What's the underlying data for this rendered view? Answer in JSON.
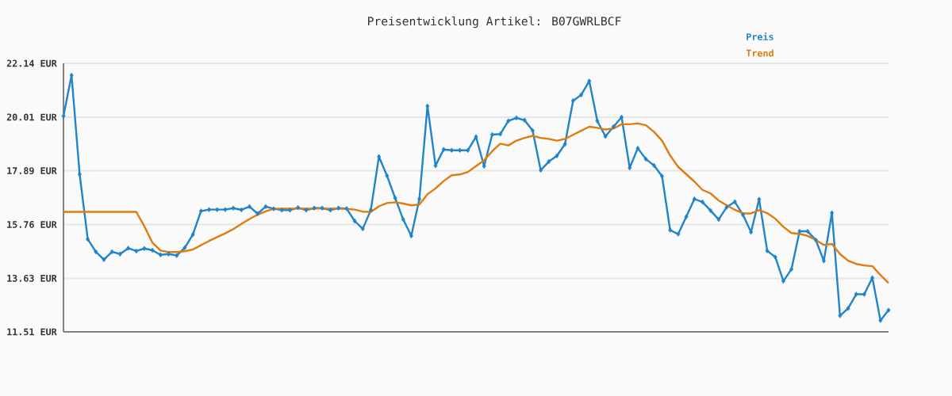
{
  "chart_data": {
    "type": "line",
    "title": "Preisentwicklung Artikel: B07GWRLBCF",
    "categories": [
      null,
      null,
      null,
      null,
      null,
      null,
      null,
      null,
      null,
      null,
      null,
      null,
      null,
      null,
      null,
      null,
      null,
      null,
      null,
      null,
      null,
      null,
      null,
      null,
      null,
      null,
      null,
      null,
      null,
      null,
      null,
      null,
      null,
      null,
      null,
      null,
      null,
      null,
      null,
      null,
      null,
      null,
      null,
      null,
      null,
      null,
      null,
      null,
      null,
      null,
      null,
      null,
      null,
      null,
      null,
      null,
      null,
      null,
      null,
      null,
      null,
      null,
      null,
      null,
      null,
      null,
      null,
      null,
      null,
      null,
      null,
      null,
      null,
      null,
      null,
      null,
      null,
      null,
      null,
      null,
      null,
      null,
      null,
      null,
      null,
      null,
      null,
      null,
      null,
      null,
      null,
      null,
      null,
      null,
      null,
      null,
      null,
      null,
      null,
      null,
      null,
      null,
      null
    ],
    "series": [
      {
        "name": "Preis",
        "color": "#1f84c9",
        "marker": "diamond",
        "values": [
          20.05,
          21.67,
          17.75,
          15.18,
          14.68,
          14.37,
          14.68,
          14.59,
          14.82,
          14.71,
          14.81,
          14.74,
          14.56,
          14.59,
          14.53,
          14.84,
          15.36,
          16.29,
          16.35,
          16.35,
          16.35,
          16.41,
          16.34,
          16.47,
          16.19,
          16.47,
          16.38,
          16.33,
          16.33,
          16.43,
          16.33,
          16.41,
          16.41,
          16.33,
          16.41,
          16.39,
          15.9,
          15.59,
          16.33,
          18.45,
          17.69,
          16.81,
          15.96,
          15.31,
          16.77,
          20.45,
          18.09,
          18.73,
          18.7,
          18.7,
          18.7,
          19.23,
          18.07,
          19.32,
          19.34,
          19.86,
          19.98,
          19.89,
          19.48,
          17.91,
          18.25,
          18.48,
          18.94,
          20.66,
          20.89,
          21.44,
          19.86,
          19.25,
          19.63,
          20.01,
          18.0,
          18.78,
          18.35,
          18.1,
          17.67,
          15.54,
          15.38,
          16.07,
          16.77,
          16.65,
          16.31,
          15.96,
          16.45,
          16.66,
          16.14,
          15.46,
          16.76,
          14.72,
          14.47,
          13.52,
          13.99,
          15.49,
          15.49,
          15.15,
          14.32,
          16.22,
          12.15,
          12.44,
          13.0,
          13.0,
          13.65,
          11.96,
          12.37
        ]
      },
      {
        "name": "Trend",
        "color": "#e07b0c",
        "marker": "none",
        "values": [
          16.26,
          16.26,
          16.26,
          16.26,
          16.26,
          16.26,
          16.26,
          16.26,
          16.26,
          16.26,
          15.69,
          15.04,
          14.73,
          14.67,
          14.67,
          14.7,
          14.77,
          14.94,
          15.11,
          15.26,
          15.41,
          15.58,
          15.78,
          15.98,
          16.15,
          16.28,
          16.38,
          16.39,
          16.39,
          16.39,
          16.39,
          16.39,
          16.39,
          16.39,
          16.39,
          16.38,
          16.35,
          16.27,
          16.26,
          16.48,
          16.61,
          16.64,
          16.59,
          16.52,
          16.55,
          16.96,
          17.19,
          17.48,
          17.71,
          17.74,
          17.84,
          18.07,
          18.3,
          18.66,
          18.96,
          18.89,
          19.08,
          19.19,
          19.27,
          19.19,
          19.15,
          19.08,
          19.15,
          19.31,
          19.47,
          19.63,
          19.59,
          19.52,
          19.56,
          19.73,
          19.73,
          19.76,
          19.69,
          19.43,
          19.08,
          18.49,
          18.04,
          17.75,
          17.46,
          17.13,
          16.99,
          16.71,
          16.52,
          16.34,
          16.2,
          16.2,
          16.33,
          16.21,
          15.99,
          15.67,
          15.42,
          15.39,
          15.31,
          15.15,
          14.95,
          14.99,
          14.59,
          14.33,
          14.2,
          14.14,
          14.11,
          13.76,
          13.44
        ]
      }
    ],
    "ylim": [
      11.51,
      22.14
    ],
    "yticks": [
      {
        "value": 11.51,
        "label": "11.51 EUR"
      },
      {
        "value": 13.63,
        "label": "13.63 EUR"
      },
      {
        "value": 15.76,
        "label": "15.76 EUR"
      },
      {
        "value": 17.89,
        "label": "17.89 EUR"
      },
      {
        "value": 20.01,
        "label": "20.01 EUR"
      },
      {
        "value": 22.14,
        "label": "22.14 EUR"
      }
    ],
    "grid": "y",
    "legend": "top right"
  }
}
